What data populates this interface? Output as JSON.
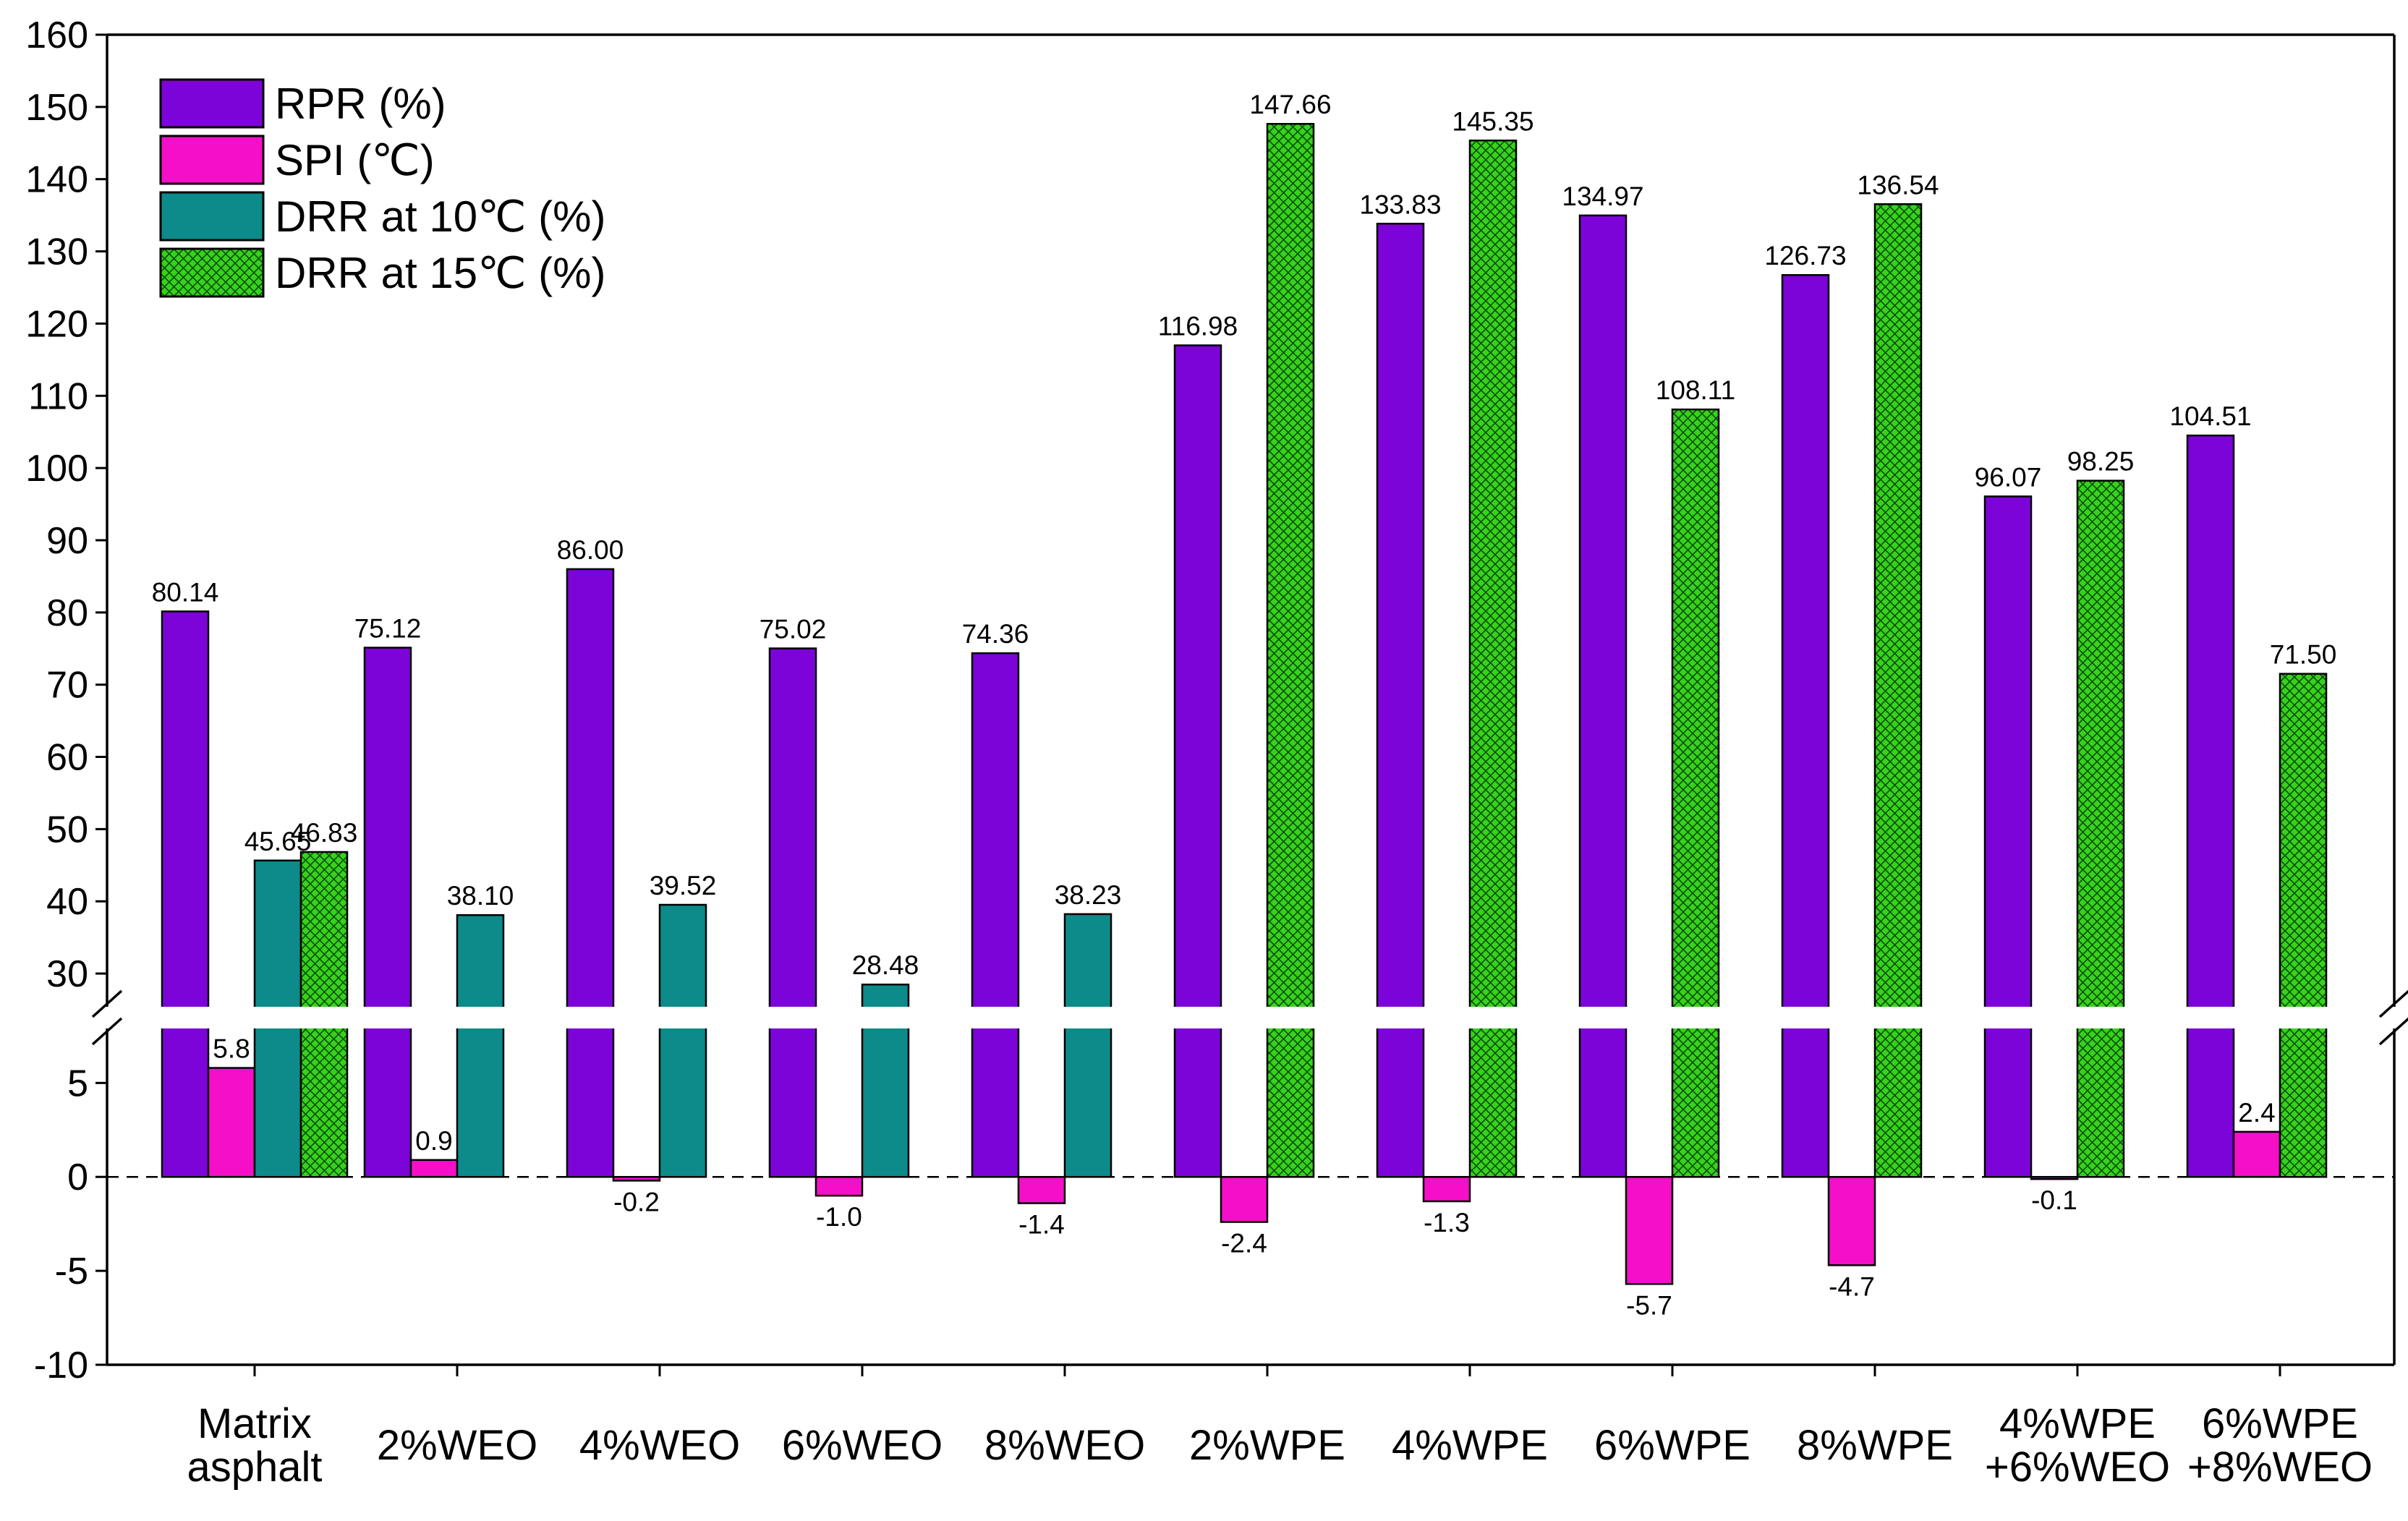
{
  "chart_data": {
    "type": "bar",
    "title": "",
    "xlabel": "",
    "ylabel": "",
    "categories": [
      [
        "Matrix",
        "asphalt"
      ],
      [
        "2%WEO"
      ],
      [
        "4%WEO"
      ],
      [
        "6%WEO"
      ],
      [
        "8%WEO"
      ],
      [
        "2%WPE"
      ],
      [
        "4%WPE"
      ],
      [
        "6%WPE"
      ],
      [
        "8%WPE"
      ],
      [
        "4%WPE",
        "+6%WEO"
      ],
      [
        "6%WPE",
        "+8%WEO"
      ]
    ],
    "series": [
      {
        "name": "RPR (%)",
        "color": "#7c04d8",
        "pattern": "solid",
        "values": [
          80.14,
          75.12,
          86.0,
          75.02,
          74.36,
          116.98,
          133.83,
          134.97,
          126.73,
          96.07,
          104.51
        ],
        "labels": [
          "80.14",
          "75.12",
          "86.00",
          "75.02",
          "74.36",
          "116.98",
          "133.83",
          "134.97",
          "126.73",
          "96.07",
          "104.51"
        ]
      },
      {
        "name": "SPI (℃)",
        "color": "#f50fc8",
        "pattern": "solid",
        "values": [
          5.8,
          0.9,
          -0.2,
          -1.0,
          -1.4,
          -2.4,
          -1.3,
          -5.7,
          -4.7,
          -0.1,
          2.4
        ],
        "labels": [
          "5.8",
          "0.9",
          "-0.2",
          "-1.0",
          "-1.4",
          "-2.4",
          "-1.3",
          "-5.7",
          "-4.7",
          "-0.1",
          "2.4"
        ]
      },
      {
        "name": "DRR at 10℃ (%)",
        "color": "#0d8a8a",
        "pattern": "solid",
        "values": [
          45.65,
          38.1,
          39.52,
          28.48,
          38.23,
          null,
          null,
          null,
          null,
          null,
          null
        ],
        "labels": [
          "45.65",
          "38.10",
          "39.52",
          "28.48",
          "38.23",
          null,
          null,
          null,
          null,
          null,
          null
        ]
      },
      {
        "name": "DRR at 15℃ (%)",
        "color": "#37d21c",
        "pattern": "crosshatch",
        "values": [
          46.83,
          null,
          null,
          null,
          null,
          147.66,
          145.35,
          108.11,
          136.54,
          98.25,
          71.5
        ],
        "labels": [
          "46.83",
          null,
          null,
          null,
          null,
          "147.66",
          "145.35",
          "108.11",
          "136.54",
          "98.25",
          "71.50"
        ]
      }
    ],
    "y_axis": {
      "broken": true,
      "lower_segment": {
        "range": [
          -10,
          7.9
        ],
        "ticks": [
          -10,
          -5,
          0,
          5
        ],
        "tick_labels": [
          "-10",
          "-5",
          "0",
          "5"
        ]
      },
      "upper_segment": {
        "range": [
          25.4,
          160
        ],
        "ticks": [
          30,
          40,
          50,
          60,
          70,
          80,
          90,
          100,
          110,
          120,
          130,
          140,
          150,
          160
        ],
        "tick_labels": [
          "30",
          "40",
          "50",
          "60",
          "70",
          "80",
          "90",
          "100",
          "110",
          "120",
          "130",
          "140",
          "150",
          "160"
        ]
      }
    },
    "zero_line": "dashed",
    "grid": false,
    "legend_position": "top-left"
  }
}
